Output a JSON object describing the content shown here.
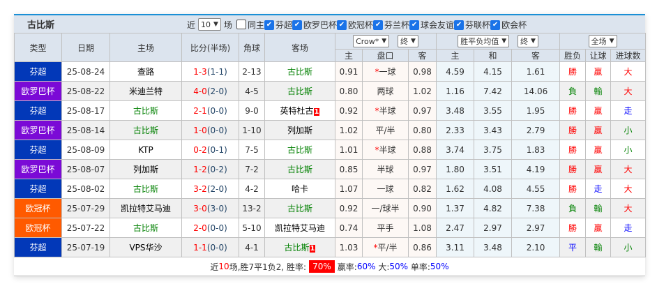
{
  "team": "古比斯",
  "filters": {
    "recent_label": "近",
    "count": "10",
    "unit": "场",
    "same_home": "同主",
    "competitions": [
      "芬超",
      "欧罗巴杯",
      "欧冠杯",
      "芬兰杯",
      "球会友谊",
      "芬联杯",
      "欧会杯"
    ]
  },
  "headers": {
    "type": "类型",
    "date": "日期",
    "home": "主场",
    "score": "比分(半场)",
    "corner": "角球",
    "away": "客场",
    "company": "Crow*",
    "hc_stage": "终",
    "eu_type": "胜平负均值",
    "eu_stage": "终",
    "scope": "全场",
    "hc_home": "主",
    "hc_line": "盘口",
    "hc_away": "客",
    "eu_home": "主",
    "eu_draw": "和",
    "eu_away": "客",
    "wl": "胜负",
    "handicap": "让球",
    "goals": "进球数"
  },
  "colors": {
    "芬超": "#0238b8",
    "欧罗巴杯": "#7b0ad6",
    "欧冠杯": "#ff5a00",
    "team": "#008000"
  },
  "rows": [
    {
      "type": "芬超",
      "date": "25-08-24",
      "home": "查路",
      "score": "1-3",
      "half": "(1-1)",
      "corner": "2-13",
      "away": "古比斯",
      "h": "0.91",
      "line": "一球",
      "star": true,
      "a": "0.98",
      "e1": "4.59",
      "ex": "4.15",
      "e2": "1.61",
      "wl": "勝",
      "hcr": "贏",
      "gl": "大"
    },
    {
      "type": "欧罗巴杯",
      "date": "25-08-22",
      "home": "米迪兰特",
      "score": "4-0",
      "half": "(2-0)",
      "corner": "4-5",
      "away": "古比斯",
      "h": "0.80",
      "line": "两球",
      "star": false,
      "a": "1.02",
      "e1": "1.16",
      "ex": "7.42",
      "e2": "14.06",
      "wl": "負",
      "hcr": "輸",
      "gl": "大"
    },
    {
      "type": "芬超",
      "date": "25-08-17",
      "home": "古比斯",
      "score": "2-1",
      "half": "(0-0)",
      "corner": "9-0",
      "away": "英特杜古",
      "awayBadge": "1",
      "h": "0.92",
      "line": "半球",
      "star": true,
      "a": "0.97",
      "e1": "3.48",
      "ex": "3.55",
      "e2": "1.95",
      "wl": "勝",
      "hcr": "贏",
      "gl": "走"
    },
    {
      "type": "欧罗巴杯",
      "date": "25-08-14",
      "home": "古比斯",
      "score": "1-0",
      "half": "(0-0)",
      "corner": "1-10",
      "away": "列加斯",
      "h": "1.02",
      "line": "平/半",
      "star": false,
      "a": "0.80",
      "e1": "2.33",
      "ex": "3.43",
      "e2": "2.79",
      "wl": "勝",
      "hcr": "贏",
      "gl": "小"
    },
    {
      "type": "芬超",
      "date": "25-08-09",
      "home": "KTP",
      "score": "0-2",
      "half": "(0-1)",
      "corner": "7-5",
      "away": "古比斯",
      "h": "1.01",
      "line": "半球",
      "star": true,
      "a": "0.88",
      "e1": "3.74",
      "ex": "3.75",
      "e2": "1.83",
      "wl": "勝",
      "hcr": "贏",
      "gl": "小"
    },
    {
      "type": "欧罗巴杯",
      "date": "25-08-07",
      "home": "列加斯",
      "score": "1-2",
      "half": "(0-2)",
      "corner": "7-2",
      "away": "古比斯",
      "h": "0.85",
      "line": "半球",
      "star": false,
      "a": "0.97",
      "e1": "1.80",
      "ex": "3.51",
      "e2": "4.19",
      "wl": "勝",
      "hcr": "贏",
      "gl": "大"
    },
    {
      "type": "芬超",
      "date": "25-08-02",
      "home": "古比斯",
      "score": "3-2",
      "half": "(2-0)",
      "corner": "4-2",
      "away": "哈卡",
      "h": "1.07",
      "line": "一球",
      "star": false,
      "a": "0.82",
      "e1": "1.62",
      "ex": "4.08",
      "e2": "4.55",
      "wl": "勝",
      "hcr": "走",
      "gl": "大"
    },
    {
      "type": "欧冠杯",
      "date": "25-07-29",
      "home": "凯拉特艾马迪",
      "score": "3-0",
      "half": "(3-0)",
      "corner": "13-2",
      "away": "古比斯",
      "h": "0.92",
      "line": "一/球半",
      "star": false,
      "a": "0.90",
      "e1": "1.37",
      "ex": "4.82",
      "e2": "7.38",
      "wl": "負",
      "hcr": "輸",
      "gl": "大"
    },
    {
      "type": "欧冠杯",
      "date": "25-07-22",
      "home": "古比斯",
      "score": "2-0",
      "half": "(0-0)",
      "corner": "5-10",
      "away": "凯拉特艾马迪",
      "h": "0.74",
      "line": "平手",
      "star": false,
      "a": "1.08",
      "e1": "2.47",
      "ex": "2.97",
      "e2": "2.97",
      "wl": "勝",
      "hcr": "贏",
      "gl": "走"
    },
    {
      "type": "芬超",
      "date": "25-07-19",
      "home": "VPS华沙",
      "score": "1-1",
      "half": "(0-0)",
      "corner": "4-1",
      "away": "古比斯",
      "awayBadge": "1",
      "h": "1.03",
      "line": "平/半",
      "star": true,
      "a": "0.86",
      "e1": "3.11",
      "ex": "3.48",
      "e2": "2.10",
      "wl": "平",
      "hcr": "輸",
      "gl": "小"
    }
  ],
  "summary": {
    "p1": "近",
    "n": "10",
    "p2": "场,胜7平1负2, 胜率:",
    "win_rate": "70%",
    "p3": "赢率:",
    "hc_rate": "60%",
    "p4": "大:",
    "big_rate": "50%",
    "p5": "单率:",
    "odd_rate": "50%"
  }
}
